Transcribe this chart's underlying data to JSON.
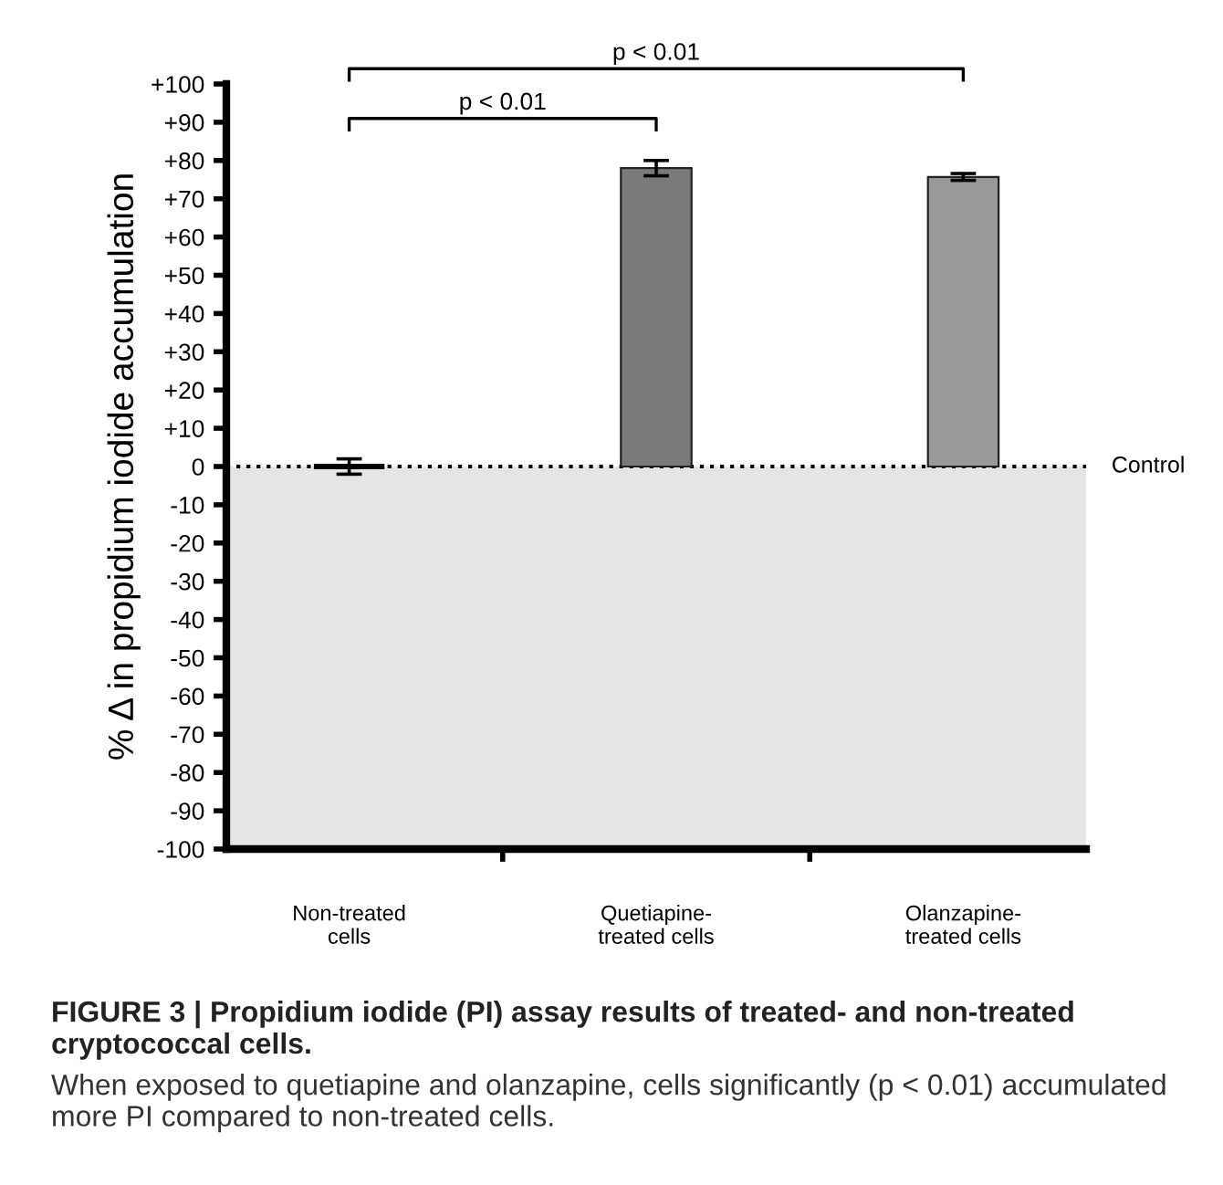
{
  "chart_data": {
    "type": "bar",
    "title": "FIGURE 3 | Propidium iodide (PI) assay results of treated- and non-treated cryptococcal cells.",
    "ylabel": "% Δ in propidium iodide accumulation",
    "categories": [
      "Non-treated\ncells",
      "Quetiapine-\ntreated cells",
      "Olanzapine-\ntreated cells"
    ],
    "values": [
      0,
      78,
      75.7
    ],
    "errors": [
      2,
      2,
      0.9
    ],
    "colors": [
      "#000000",
      "#7a7a7a",
      "#999999"
    ],
    "ylim": [
      -100,
      100
    ],
    "yticks": [
      -100,
      -90,
      -80,
      -70,
      -60,
      -50,
      -40,
      -30,
      -20,
      -10,
      0,
      {
        "value": 10,
        "label": "+10"
      },
      {
        "value": 20,
        "label": "+20"
      },
      {
        "value": 30,
        "label": "+30"
      },
      {
        "value": 40,
        "label": "+40"
      },
      {
        "value": 50,
        "label": "+50"
      },
      {
        "value": 60,
        "label": "+60"
      },
      {
        "value": 70,
        "label": "+70"
      },
      {
        "value": 80,
        "label": "+80"
      },
      {
        "value": 90,
        "label": "+90"
      },
      {
        "value": 100,
        "label": "+100"
      }
    ],
    "ref_lines": [
      {
        "axis": "y",
        "value": 0,
        "label": "Control",
        "color": "#000000",
        "line_style": "dotted"
      }
    ],
    "bands": [
      {
        "axis": "y",
        "from": -100,
        "to": 0,
        "color": "#e5e5e5"
      }
    ],
    "annotations": [
      "p < 0.01",
      "p < 0.01",
      "When exposed to quetiapine and olanzapine, cells significantly (p < 0.01) accumulated more PI compared to non-treated cells."
    ],
    "grid": false,
    "legend": false
  }
}
